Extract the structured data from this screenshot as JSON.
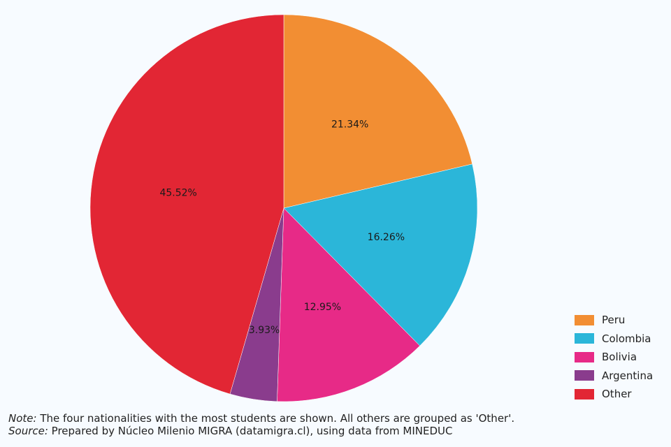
{
  "chart_data": {
    "type": "pie",
    "slices": [
      {
        "label": "Peru",
        "value": 21.34,
        "display": "21.34%",
        "color": "#f28e33"
      },
      {
        "label": "Colombia",
        "value": 16.26,
        "display": "16.26%",
        "color": "#2bb6d9"
      },
      {
        "label": "Bolivia",
        "value": 12.95,
        "display": "12.95%",
        "color": "#e72a87"
      },
      {
        "label": "Argentina",
        "value": 3.93,
        "display": "3.93%",
        "color": "#8a3c8d"
      },
      {
        "label": "Other",
        "value": 45.52,
        "display": "45.52%",
        "color": "#e22634"
      }
    ],
    "legend_position": "bottom-right"
  },
  "notes": {
    "note_prefix": "Note:",
    "note_text": " The four nationalities with the most students are shown. All others are grouped as 'Other'.",
    "source_prefix": "Source:",
    "source_text": " Prepared by Núcleo Milenio MIGRA (datamigra.cl), using data from MINEDUC"
  },
  "background_color": "#f7fbff"
}
